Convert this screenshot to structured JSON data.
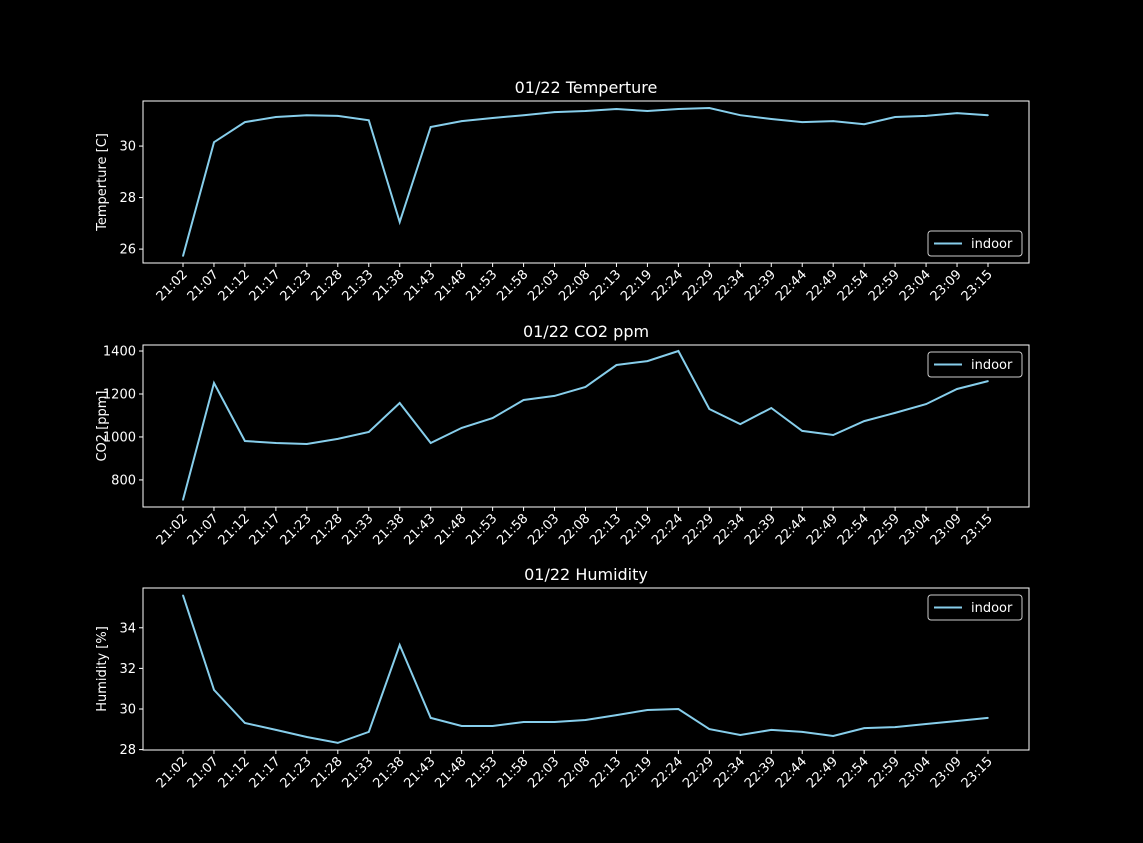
{
  "chart_data": [
    {
      "type": "line",
      "title": "01/22 Temperture",
      "xlabel": "",
      "ylabel": "Temperture [C]",
      "ylim": [
        25.46,
        31.75
      ],
      "yticks": [
        26,
        28,
        30
      ],
      "legend": "lower right",
      "grid": false,
      "x": [
        "21:02",
        "21:07",
        "21:12",
        "21:17",
        "21:23",
        "21:28",
        "21:33",
        "21:38",
        "21:43",
        "21:48",
        "21:53",
        "21:58",
        "22:03",
        "22:08",
        "22:13",
        "22:19",
        "22:24",
        "22:29",
        "22:34",
        "22:39",
        "22:44",
        "22:49",
        "22:54",
        "22:59",
        "23:04",
        "23:09",
        "23:15"
      ],
      "series": [
        {
          "name": "indoor",
          "color": "#87ceeb",
          "values": [
            25.73,
            30.15,
            30.93,
            31.13,
            31.2,
            31.17,
            31.0,
            27.05,
            30.74,
            30.97,
            31.09,
            31.2,
            31.32,
            31.36,
            31.44,
            31.36,
            31.44,
            31.48,
            31.2,
            31.05,
            30.93,
            30.97,
            30.85,
            31.13,
            31.17,
            31.28,
            31.2
          ]
        }
      ]
    },
    {
      "type": "line",
      "title": "01/22 CO2 ppm",
      "xlabel": "",
      "ylabel": "CO2 [ppm]",
      "ylim": [
        674,
        1428
      ],
      "yticks": [
        800,
        1000,
        1200,
        1400
      ],
      "legend": "upper right",
      "grid": false,
      "x": [
        "21:02",
        "21:07",
        "21:12",
        "21:17",
        "21:23",
        "21:28",
        "21:33",
        "21:38",
        "21:43",
        "21:48",
        "21:53",
        "21:58",
        "22:03",
        "22:08",
        "22:13",
        "22:19",
        "22:24",
        "22:29",
        "22:34",
        "22:39",
        "22:44",
        "22:49",
        "22:54",
        "22:59",
        "23:04",
        "23:09",
        "23:15"
      ],
      "series": [
        {
          "name": "indoor",
          "color": "#87ceeb",
          "values": [
            707,
            1251,
            981,
            972,
            967,
            991,
            1023,
            1158,
            972,
            1042,
            1088,
            1172,
            1191,
            1233,
            1335,
            1353,
            1400,
            1130,
            1060,
            1135,
            1028,
            1009,
            1074,
            1112,
            1153,
            1223,
            1260
          ]
        }
      ]
    },
    {
      "type": "line",
      "title": "01/22 Humidity",
      "xlabel": "",
      "ylabel": "Humidity [%]",
      "ylim": [
        27.98,
        35.96
      ],
      "yticks": [
        28,
        30,
        32,
        34
      ],
      "legend": "upper right",
      "grid": false,
      "x": [
        "21:02",
        "21:07",
        "21:12",
        "21:17",
        "21:23",
        "21:28",
        "21:33",
        "21:38",
        "21:43",
        "21:48",
        "21:53",
        "21:58",
        "22:03",
        "22:08",
        "22:13",
        "22:19",
        "22:24",
        "22:29",
        "22:34",
        "22:39",
        "22:44",
        "22:49",
        "22:54",
        "22:59",
        "23:04",
        "23:09",
        "23:15"
      ],
      "series": [
        {
          "name": "indoor",
          "color": "#87ceeb",
          "values": [
            35.6,
            30.94,
            29.31,
            28.97,
            28.62,
            28.33,
            28.87,
            33.15,
            29.56,
            29.16,
            29.16,
            29.36,
            29.36,
            29.46,
            29.7,
            29.95,
            30.0,
            29.01,
            28.72,
            28.97,
            28.87,
            28.67,
            29.06,
            29.11,
            29.26,
            29.41,
            29.56
          ]
        }
      ]
    }
  ]
}
